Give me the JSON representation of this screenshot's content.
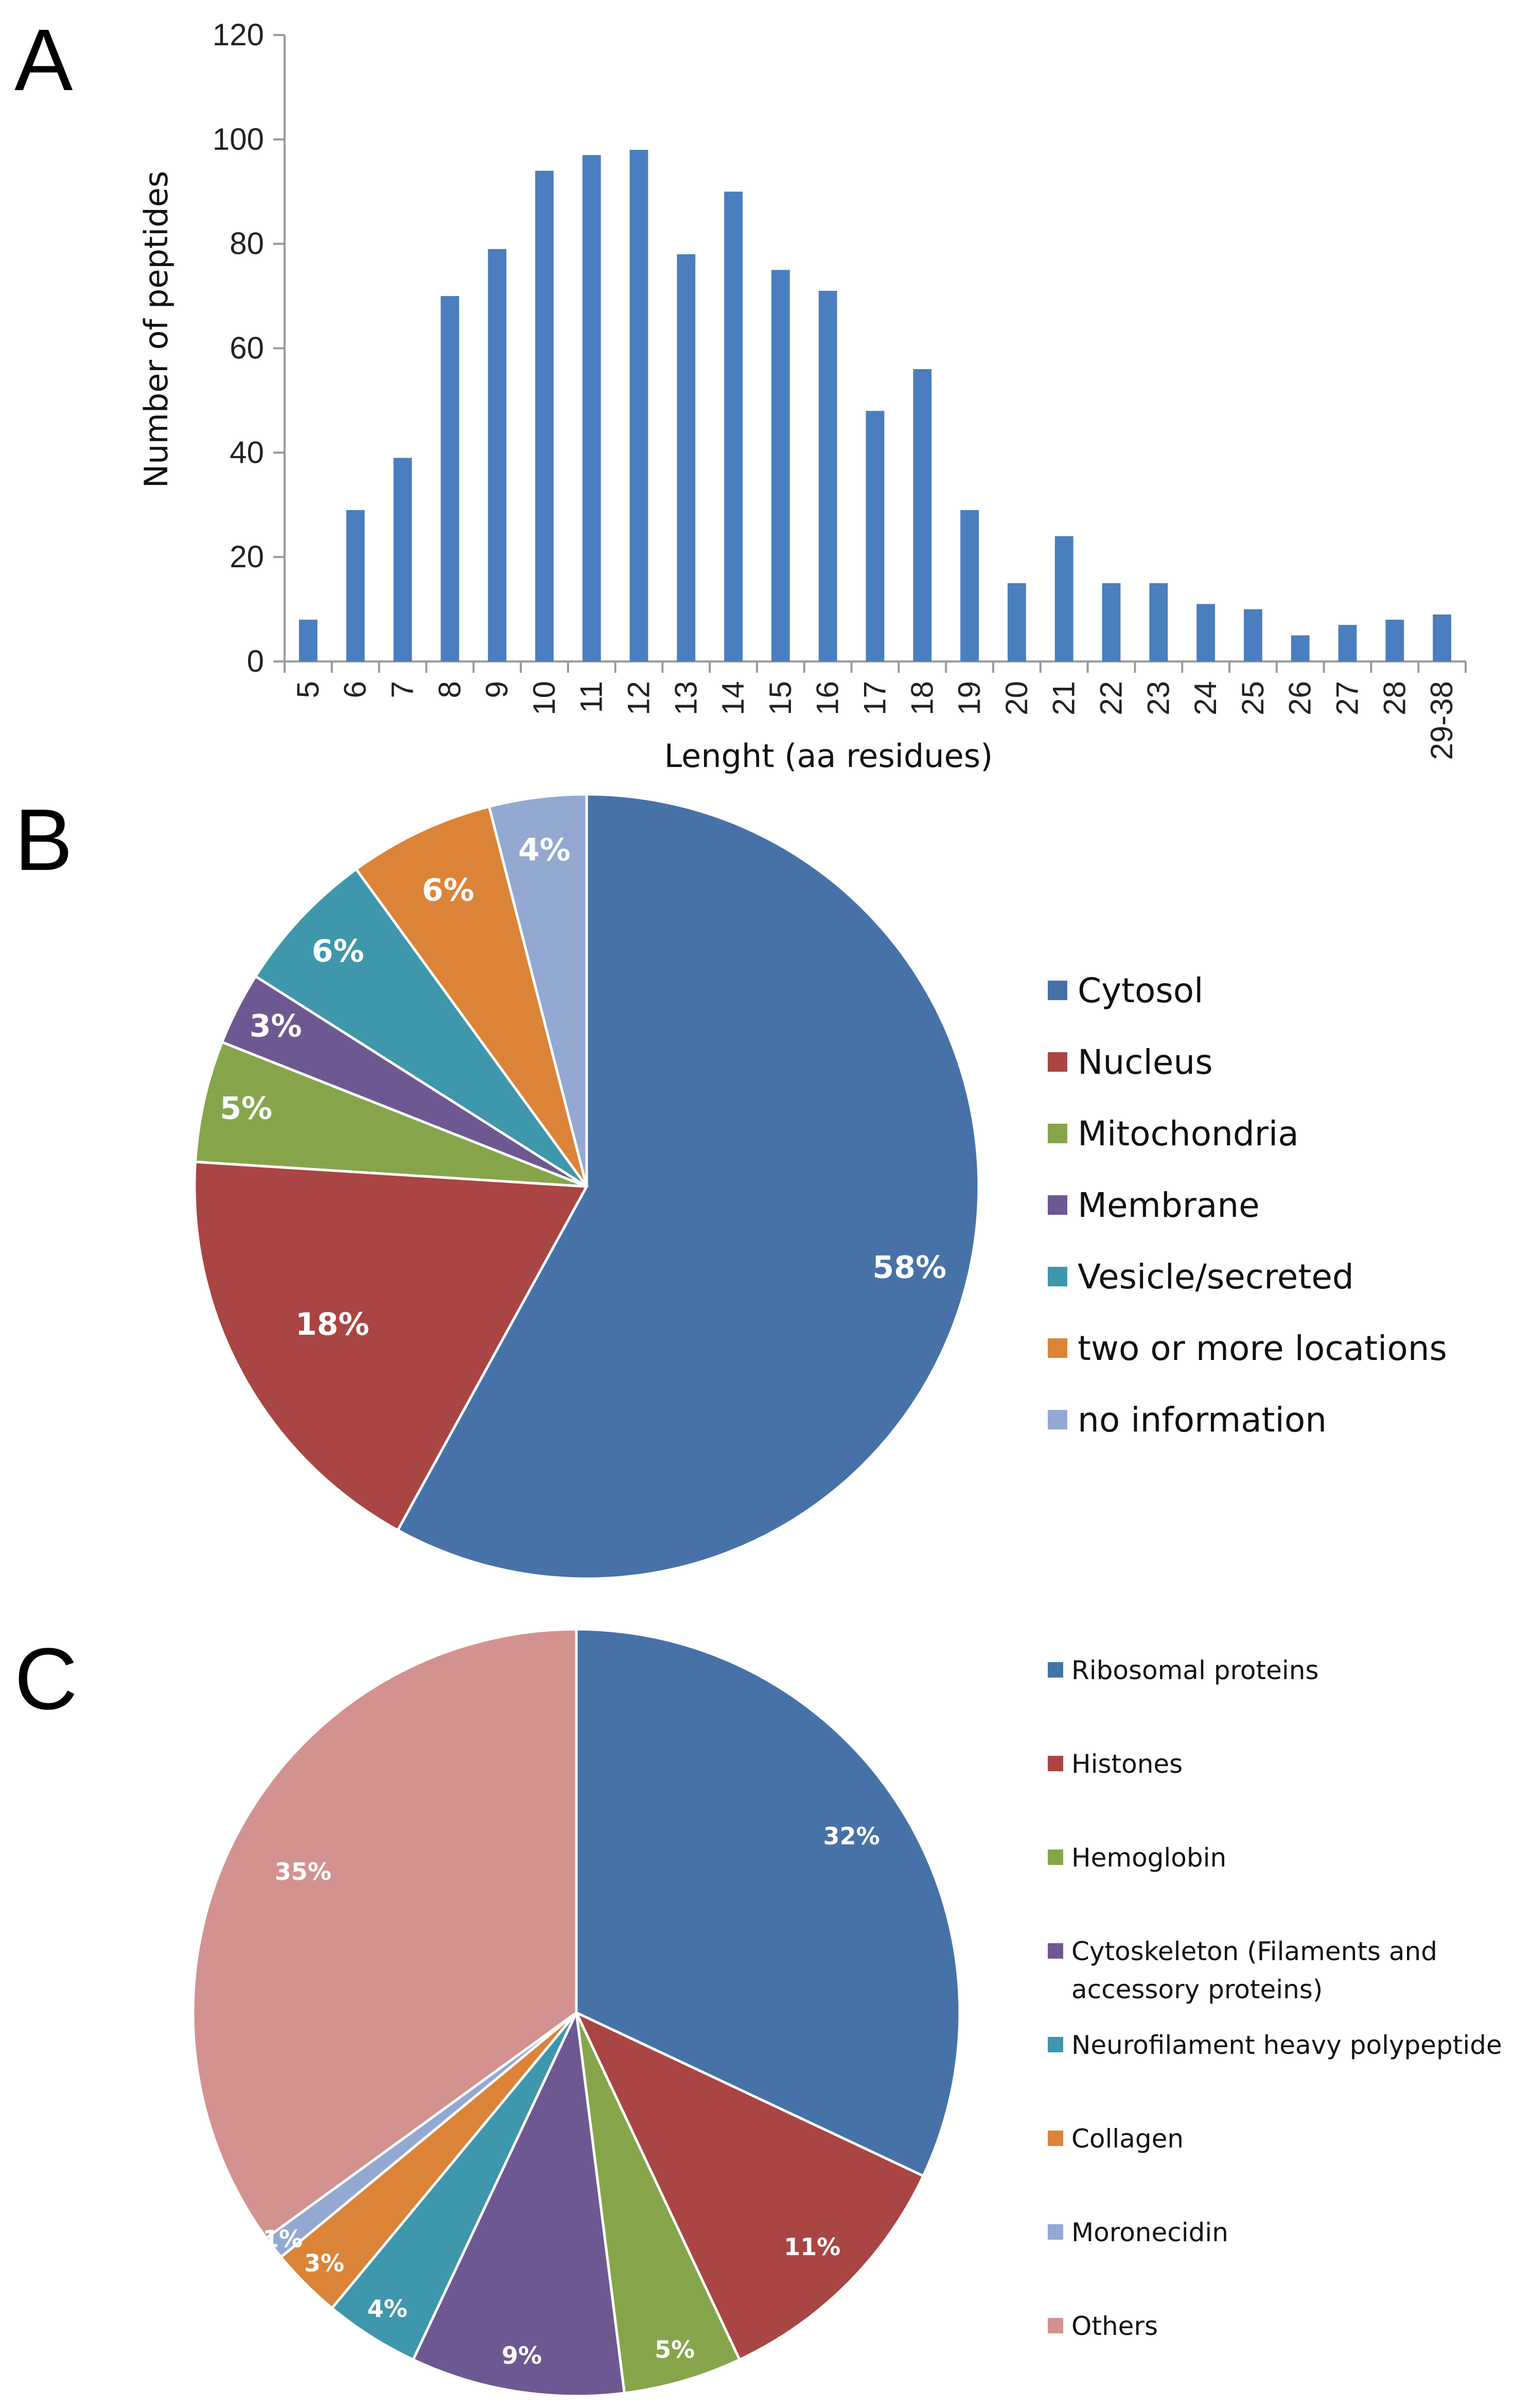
{
  "panels": {
    "a": "A",
    "b": "B",
    "c": "C"
  },
  "chart_data": [
    {
      "type": "bar",
      "title": "",
      "xlabel": "Lenght (aa residues)",
      "ylabel": "Number of peptides",
      "ylim": [
        0,
        120
      ],
      "yticks": [
        0,
        20,
        40,
        60,
        80,
        100,
        120
      ],
      "grid": false,
      "categories": [
        "5",
        "6",
        "7",
        "8",
        "9",
        "10",
        "11",
        "12",
        "13",
        "14",
        "15",
        "16",
        "17",
        "18",
        "19",
        "20",
        "21",
        "22",
        "23",
        "24",
        "25",
        "26",
        "27",
        "28",
        "29-38"
      ],
      "values": [
        8,
        29,
        39,
        70,
        79,
        94,
        97,
        98,
        78,
        90,
        75,
        71,
        48,
        56,
        29,
        15,
        24,
        15,
        15,
        11,
        10,
        5,
        7,
        8,
        9
      ],
      "color": "#4a7ebf"
    },
    {
      "type": "pie",
      "title": "",
      "legend_position": "right",
      "slices": [
        {
          "name": "Cytosol",
          "value": 58,
          "label": "58%",
          "color": "#4672a8"
        },
        {
          "name": "Nucleus",
          "value": 18,
          "label": "18%",
          "color": "#a94543"
        },
        {
          "name": "Mitochondria",
          "value": 5,
          "label": "5%",
          "color": "#86a54b"
        },
        {
          "name": "Membrane",
          "value": 3,
          "label": "3%",
          "color": "#6e5891"
        },
        {
          "name": "Vesicle/secreted",
          "value": 6,
          "label": "6%",
          "color": "#3f97ac"
        },
        {
          "name": "two or more locations",
          "value": 6,
          "label": "6%",
          "color": "#db8438"
        },
        {
          "name": "no information",
          "value": 4,
          "label": "4%",
          "color": "#93a9d1"
        }
      ]
    },
    {
      "type": "pie",
      "title": "",
      "legend_position": "right",
      "slices": [
        {
          "name": "Ribosomal proteins",
          "value": 32,
          "label": "32%",
          "color": "#4672a8"
        },
        {
          "name": "Histones",
          "value": 11,
          "label": "11%",
          "color": "#a94543"
        },
        {
          "name": "Hemoglobin",
          "value": 5,
          "label": "5%",
          "color": "#86a54b"
        },
        {
          "name": "Cytoskeleton (Filaments and accessory proteins)",
          "legend_lines": [
            "Cytoskeleton (Filaments and",
            "accessory proteins)"
          ],
          "value": 9,
          "label": "9%",
          "color": "#6e5891"
        },
        {
          "name": "Neurofilament heavy polypeptide",
          "value": 4,
          "label": "4%",
          "color": "#3f97ac"
        },
        {
          "name": "Collagen",
          "value": 3,
          "label": "3%",
          "color": "#db8438"
        },
        {
          "name": "Moronecidin",
          "value": 1,
          "label": "1%",
          "color": "#93a9d1"
        },
        {
          "name": "Others",
          "value": 35,
          "label": "35%",
          "color": "#d39290"
        }
      ]
    }
  ]
}
